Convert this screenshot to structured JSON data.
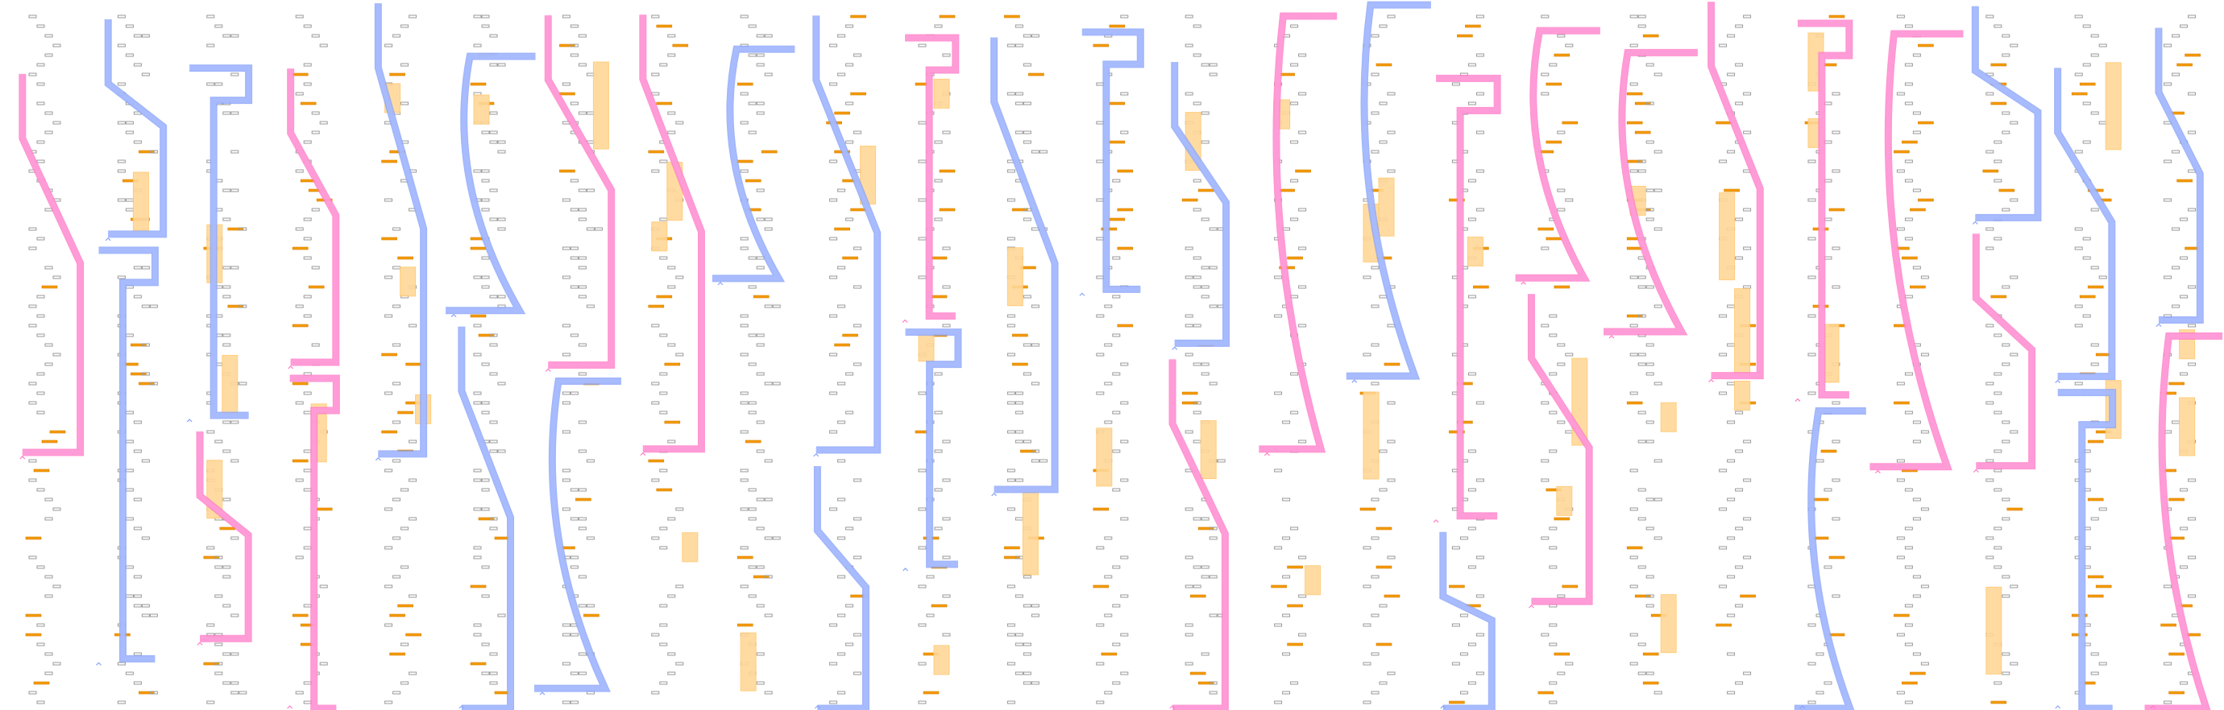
{
  "diagram": {
    "colors": {
      "background": "#ffffff",
      "marker_outline": "#9a9a9a",
      "highlight_bar": "#f59a00",
      "highlight_bar_stroke": "#d77f00",
      "block_fill": "#ffd898",
      "block_stroke": "#ffc870",
      "ribbon_pink": "#ff9ed8",
      "ribbon_pink_stroke": "#ff7cc8",
      "ribbon_blue": "#a8bcff",
      "ribbon_blue_stroke": "#8aa4f8",
      "ribbon_overlap": "#cc88dd"
    },
    "columns": 25,
    "icons": [
      "caret-up-icon"
    ]
  }
}
